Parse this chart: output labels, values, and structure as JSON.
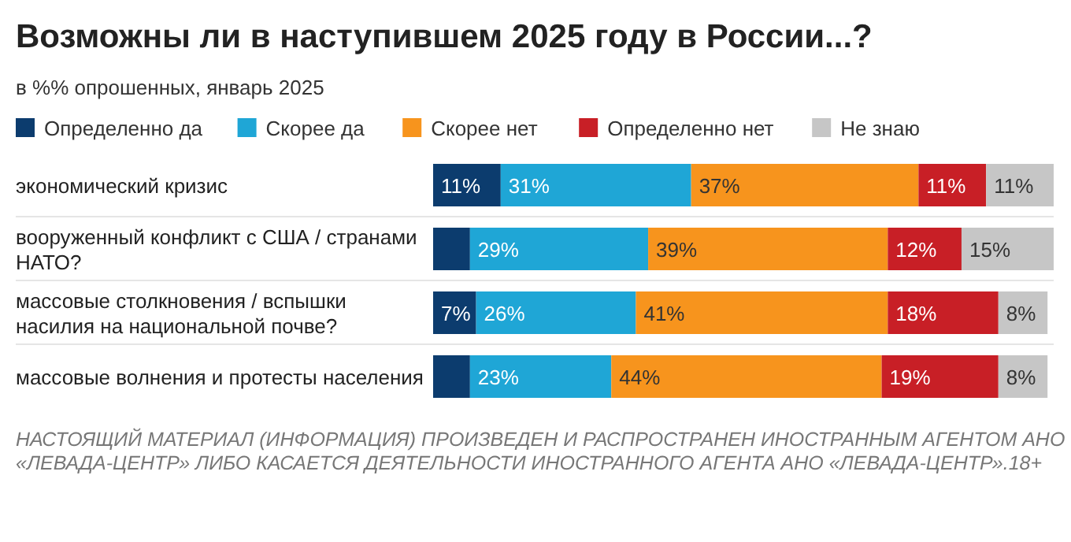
{
  "chart_data": {
    "type": "bar",
    "orientation": "horizontal",
    "stacked": true,
    "title": "Возможны ли в наступившем 2025 году в России...?",
    "subtitle": "в %% опрошенных, январь 2025",
    "legend": "top",
    "tick_labels": "y",
    "categories": [
      "экономический кризис",
      "вооруженный конфликт с США / странами НАТО?",
      "массовые столкновения / вспышки насилия на национальной почве?",
      "массовые волнения и протесты населения"
    ],
    "series": [
      {
        "name": "Определенно да",
        "color": "#0c3c6e",
        "values": [
          11,
          6,
          7,
          6
        ],
        "value_labels": [
          "11%",
          null,
          "7%",
          null
        ]
      },
      {
        "name": "Скорее да",
        "color": "#1fa6d6",
        "values": [
          31,
          29,
          26,
          23
        ],
        "value_labels": [
          "31%",
          "29%",
          "26%",
          "23%"
        ]
      },
      {
        "name": "Скорее нет",
        "color": "#f7941d",
        "values": [
          37,
          39,
          41,
          44
        ],
        "value_labels": [
          "37%",
          "39%",
          "41%",
          "44%"
        ]
      },
      {
        "name": "Определенно нет",
        "color": "#c81f26",
        "values": [
          11,
          12,
          18,
          19
        ],
        "value_labels": [
          "11%",
          "12%",
          "18%",
          "19%"
        ]
      },
      {
        "name": "Не знаю",
        "color": "#c6c6c6",
        "values": [
          11,
          15,
          8,
          8
        ],
        "value_labels": [
          "11%",
          "15%",
          "8%",
          "8%"
        ]
      }
    ],
    "annotations": [
      "НАСТОЯЩИЙ МАТЕРИАЛ (ИНФОРМАЦИЯ) ПРОИЗВЕДЕН И РАСПРОСТРАНЕН ИНОСТРАННЫМ АГЕНТОМ АНО «ЛЕВАДА-ЦЕНТР» ЛИБО КАСАЕТСЯ ДЕЯТЕЛЬНОСТИ ИНОСТРАННОГО АГЕНТА АНО «ЛЕВАДА-ЦЕНТР».18+"
    ]
  }
}
